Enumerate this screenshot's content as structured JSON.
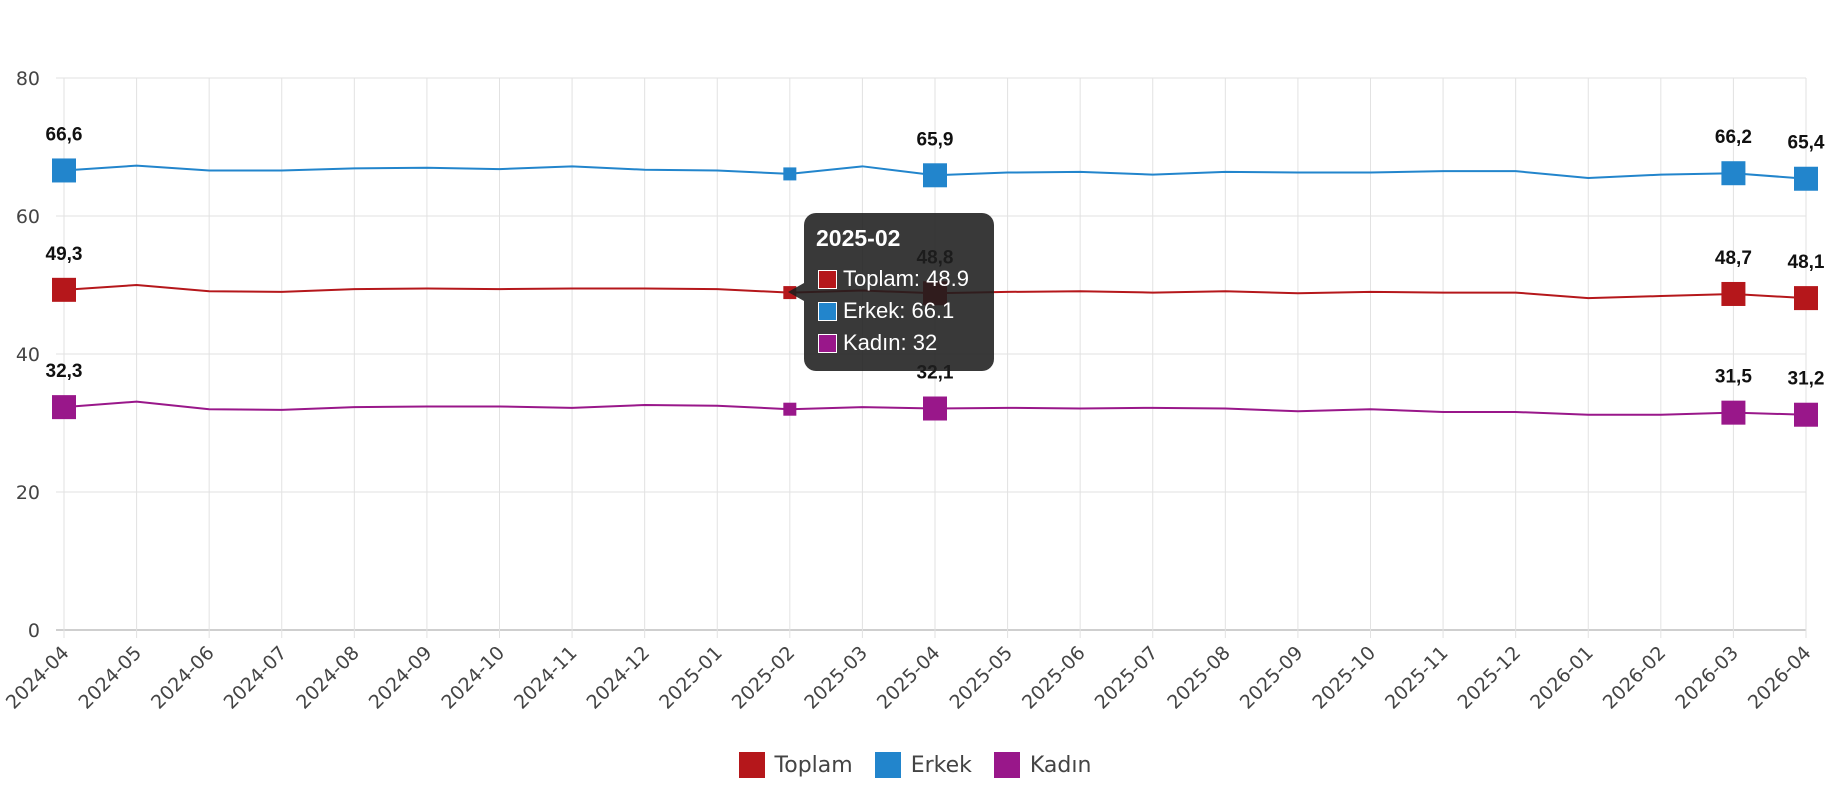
{
  "chart_data": {
    "type": "line",
    "x": [
      "2024-04",
      "2024-05",
      "2024-06",
      "2024-07",
      "2024-08",
      "2024-09",
      "2024-10",
      "2024-11",
      "2024-12",
      "2025-01",
      "2025-02",
      "2025-03",
      "2025-04",
      "2025-05",
      "2025-06",
      "2025-07",
      "2025-08",
      "2025-09",
      "2025-10",
      "2025-11",
      "2025-12",
      "2026-01",
      "2026-02",
      "2026-03",
      "2026-04"
    ],
    "ylim": [
      0,
      80
    ],
    "yticks": [
      "0",
      "20",
      "40",
      "60",
      "80"
    ],
    "grid": true,
    "legend_position": "bottom",
    "series": [
      {
        "name": "Toplam",
        "color": "#b5171b",
        "values": [
          49.3,
          50.0,
          49.1,
          49.0,
          49.4,
          49.5,
          49.4,
          49.5,
          49.5,
          49.4,
          48.9,
          49.2,
          48.8,
          49.0,
          49.1,
          48.9,
          49.1,
          48.8,
          49.0,
          48.9,
          48.9,
          48.1,
          48.4,
          48.7,
          48.1
        ],
        "labels": [
          "49,3",
          "",
          "",
          "",
          "",
          "",
          "",
          "",
          "",
          "",
          "",
          "",
          "48,8",
          "",
          "",
          "",
          "",
          "",
          "",
          "",
          "",
          "",
          "",
          "48,7",
          "48,1"
        ]
      },
      {
        "name": "Erkek",
        "color": "#2285cc",
        "values": [
          66.6,
          67.3,
          66.6,
          66.6,
          66.9,
          67.0,
          66.8,
          67.2,
          66.7,
          66.6,
          66.1,
          67.2,
          65.9,
          66.3,
          66.4,
          66.0,
          66.4,
          66.3,
          66.3,
          66.5,
          66.5,
          65.5,
          66.0,
          66.2,
          65.4
        ],
        "labels": [
          "66,6",
          "",
          "",
          "",
          "",
          "",
          "",
          "",
          "",
          "",
          "",
          "",
          "65,9",
          "",
          "",
          "",
          "",
          "",
          "",
          "",
          "",
          "",
          "",
          "66,2",
          "65,4"
        ]
      },
      {
        "name": "Kadın",
        "color": "#99178a",
        "values": [
          32.3,
          33.1,
          32.0,
          31.9,
          32.3,
          32.4,
          32.4,
          32.2,
          32.6,
          32.5,
          32.0,
          32.3,
          32.1,
          32.2,
          32.1,
          32.2,
          32.1,
          31.7,
          32.0,
          31.6,
          31.6,
          31.2,
          31.2,
          31.5,
          31.2
        ],
        "labels": [
          "32,3",
          "",
          "",
          "",
          "",
          "",
          "",
          "",
          "",
          "",
          "",
          "",
          "32,1",
          "",
          "",
          "",
          "",
          "",
          "",
          "",
          "",
          "",
          "",
          "31,5",
          "31,2"
        ]
      }
    ]
  },
  "tooltip": {
    "title": "2025-02",
    "rows": [
      {
        "text": "Toplam: 48.9",
        "color": "#b5171b"
      },
      {
        "text": "Erkek: 66.1",
        "color": "#2285cc"
      },
      {
        "text": "Kadın: 32",
        "color": "#99178a"
      }
    ]
  }
}
